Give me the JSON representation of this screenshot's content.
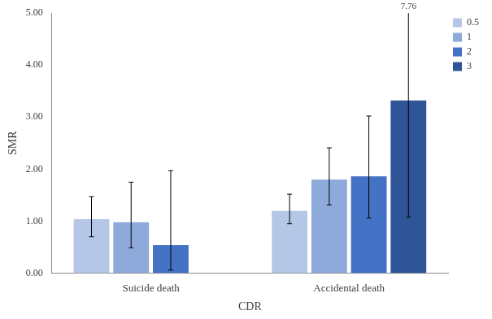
{
  "chart_data": {
    "type": "bar",
    "x_label": "CDR",
    "y_label": "SMR",
    "categories": [
      "Suicide death",
      "Accidental death"
    ],
    "series": [
      {
        "name": "0.5",
        "color": "#b4c7e7",
        "values": [
          1.04,
          1.2
        ],
        "error_lower": [
          0.7,
          0.95
        ],
        "error_upper": [
          1.47,
          1.52
        ]
      },
      {
        "name": "1",
        "color": "#8eaadb",
        "values": [
          0.98,
          1.8
        ],
        "error_lower": [
          0.49,
          1.31
        ],
        "error_upper": [
          1.75,
          2.41
        ]
      },
      {
        "name": "2",
        "color": "#4472c4",
        "values": [
          0.54,
          1.86
        ],
        "error_lower": [
          0.06,
          1.06
        ],
        "error_upper": [
          1.97,
          3.02
        ]
      },
      {
        "name": "3",
        "color": "#2f5597",
        "values": [
          null,
          3.32
        ],
        "error_lower": [
          null,
          1.08
        ],
        "error_upper": [
          null,
          7.76
        ]
      }
    ],
    "ylim": [
      0,
      5
    ],
    "yticks": [
      {
        "value": 0,
        "label": "0.00"
      },
      {
        "value": 1,
        "label": "1.00"
      },
      {
        "value": 2,
        "label": "2.00"
      },
      {
        "value": 3,
        "label": "3.00"
      },
      {
        "value": 4,
        "label": "4.00"
      },
      {
        "value": 5,
        "label": "5.00"
      }
    ],
    "grid": false,
    "legend": "top right"
  }
}
